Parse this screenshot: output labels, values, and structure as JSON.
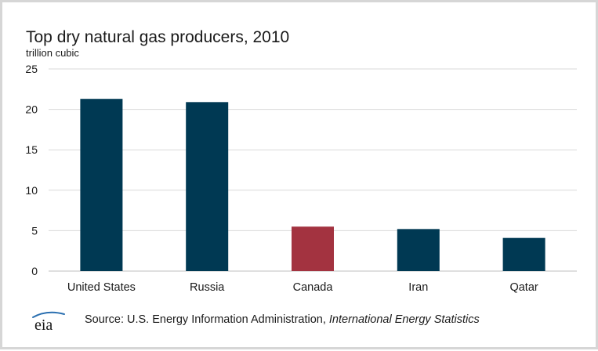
{
  "chart_data": {
    "type": "bar",
    "title": "Top dry natural gas producers, 2010",
    "unit_label": "trillion cubic",
    "categories": [
      "United States",
      "Russia",
      "Canada",
      "Iran",
      "Qatar"
    ],
    "values": [
      21.3,
      20.9,
      5.5,
      5.2,
      4.1
    ],
    "bar_colors": [
      "#003953",
      "#003953",
      "#a33340",
      "#003953",
      "#003953"
    ],
    "ylim": [
      0,
      25
    ],
    "yticks": [
      0,
      5,
      10,
      15,
      20,
      25
    ],
    "grid": true,
    "legend": "none"
  },
  "source": {
    "prefix": "Source: U.S. Energy Information Administration, ",
    "italic": "International Energy Statistics"
  },
  "logo": {
    "text": "eia"
  },
  "colors": {
    "grid": "#d9d9d9",
    "axis": "#bfbfbf",
    "text": "#1a1a1a",
    "logo_swoosh": "#2a6fb0"
  }
}
